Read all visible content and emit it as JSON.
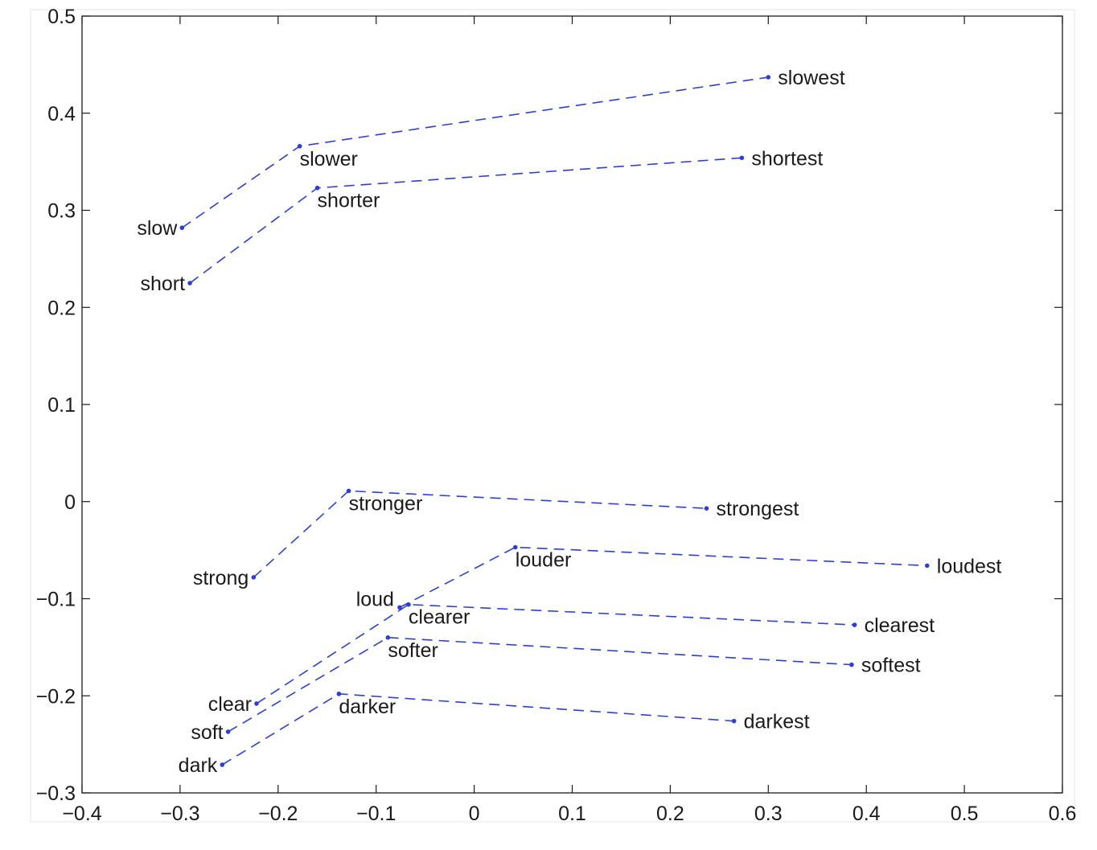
{
  "chart_data": {
    "type": "scatter",
    "title": "",
    "xlabel": "",
    "ylabel": "",
    "xlim": [
      -0.4,
      0.6
    ],
    "ylim": [
      -0.3,
      0.5
    ],
    "xticks": [
      -0.4,
      -0.3,
      -0.2,
      -0.1,
      0,
      0.1,
      0.2,
      0.3,
      0.4,
      0.5,
      0.6
    ],
    "xtick_labels": [
      "−0.4",
      "−0.3",
      "−0.2",
      "−0.1",
      "0",
      "0.1",
      "0.2",
      "0.3",
      "0.4",
      "0.5",
      "0.6"
    ],
    "yticks": [
      0.5,
      0.4,
      0.3,
      0.2,
      0.1,
      0,
      -0.1,
      -0.2,
      -0.3
    ],
    "ytick_labels": [
      "0.5",
      "0.4",
      "0.3",
      "0.2",
      "0.1",
      "0",
      "−0.1",
      "−0.2",
      "−0.3"
    ],
    "grid": false,
    "line_style": "dashed",
    "colors": {
      "series": "#2b3fd6",
      "axes": "#1a1a1a",
      "text": "#1a1a1a"
    },
    "series": [
      {
        "points": [
          {
            "label": "slow",
            "x": -0.298,
            "y": 0.282,
            "label_side": "left"
          },
          {
            "label": "slower",
            "x": -0.178,
            "y": 0.366,
            "label_side": "below"
          },
          {
            "label": "slowest",
            "x": 0.3,
            "y": 0.437,
            "label_side": "right"
          }
        ]
      },
      {
        "points": [
          {
            "label": "short",
            "x": -0.29,
            "y": 0.225,
            "label_side": "left"
          },
          {
            "label": "shorter",
            "x": -0.16,
            "y": 0.323,
            "label_side": "below"
          },
          {
            "label": "shortest",
            "x": 0.273,
            "y": 0.354,
            "label_side": "right"
          }
        ]
      },
      {
        "points": [
          {
            "label": "strong",
            "x": -0.225,
            "y": -0.078,
            "label_side": "left"
          },
          {
            "label": "stronger",
            "x": -0.128,
            "y": 0.011,
            "label_side": "below"
          },
          {
            "label": "strongest",
            "x": 0.237,
            "y": -0.007,
            "label_side": "right"
          }
        ]
      },
      {
        "points": [
          {
            "label": "loud",
            "x": -0.076,
            "y": -0.109,
            "label_side": "above-left"
          },
          {
            "label": "louder",
            "x": 0.042,
            "y": -0.047,
            "label_side": "below"
          },
          {
            "label": "loudest",
            "x": 0.462,
            "y": -0.066,
            "label_side": "right"
          }
        ]
      },
      {
        "points": [
          {
            "label": "clear",
            "x": -0.222,
            "y": -0.208,
            "label_side": "left"
          },
          {
            "label": "clearer",
            "x": -0.067,
            "y": -0.106,
            "label_side": "below"
          },
          {
            "label": "clearest",
            "x": 0.388,
            "y": -0.127,
            "label_side": "right"
          }
        ]
      },
      {
        "points": [
          {
            "label": "soft",
            "x": -0.251,
            "y": -0.237,
            "label_side": "left"
          },
          {
            "label": "softer",
            "x": -0.088,
            "y": -0.14,
            "label_side": "below"
          },
          {
            "label": "softest",
            "x": 0.385,
            "y": -0.168,
            "label_side": "right"
          }
        ]
      },
      {
        "points": [
          {
            "label": "dark",
            "x": -0.257,
            "y": -0.271,
            "label_side": "left"
          },
          {
            "label": "darker",
            "x": -0.138,
            "y": -0.198,
            "label_side": "below"
          },
          {
            "label": "darkest",
            "x": 0.265,
            "y": -0.226,
            "label_side": "right"
          }
        ]
      }
    ]
  }
}
